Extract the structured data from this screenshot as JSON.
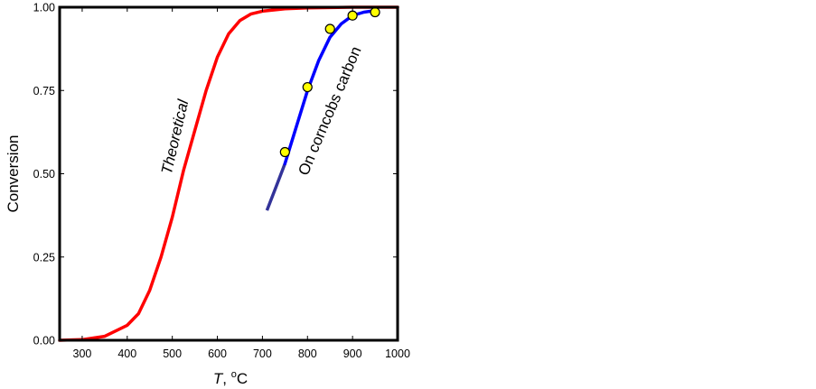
{
  "chart_data": {
    "type": "line",
    "xlabel_italic": "T",
    "xlabel_rest": ", ",
    "xlabel_degree": "o",
    "xlabel_unit": "C",
    "ylabel": "Conversion",
    "xlim": [
      250,
      1000
    ],
    "ylim": [
      0,
      1
    ],
    "x_ticks": [
      300,
      400,
      500,
      600,
      700,
      800,
      900,
      1000
    ],
    "y_ticks": [
      "0.00",
      "0.25",
      "0.50",
      "0.75",
      "1.00"
    ],
    "y_tick_values": [
      0,
      0.25,
      0.5,
      0.75,
      1.0
    ],
    "grid": false,
    "series": [
      {
        "label": "Theoretical",
        "color": "#ff0000",
        "points": [
          [
            250,
            0.0
          ],
          [
            300,
            0.002
          ],
          [
            350,
            0.012
          ],
          [
            400,
            0.045
          ],
          [
            425,
            0.08
          ],
          [
            450,
            0.15
          ],
          [
            475,
            0.25
          ],
          [
            500,
            0.37
          ],
          [
            525,
            0.51
          ],
          [
            550,
            0.63
          ],
          [
            575,
            0.75
          ],
          [
            600,
            0.85
          ],
          [
            625,
            0.92
          ],
          [
            650,
            0.96
          ],
          [
            675,
            0.98
          ],
          [
            700,
            0.988
          ],
          [
            750,
            0.995
          ],
          [
            800,
            0.998
          ],
          [
            900,
            1.0
          ],
          [
            1000,
            1.0
          ]
        ]
      },
      {
        "label": "On corncobs carbon",
        "color": "#0000ff",
        "extrapolated_color": "#333399",
        "extrapolated_points": [
          [
            710,
            0.39
          ],
          [
            730,
            0.46
          ],
          [
            750,
            0.53
          ]
        ],
        "fit_points": [
          [
            750,
            0.53
          ],
          [
            775,
            0.64
          ],
          [
            800,
            0.75
          ],
          [
            825,
            0.84
          ],
          [
            850,
            0.91
          ],
          [
            875,
            0.95
          ],
          [
            900,
            0.975
          ],
          [
            925,
            0.985
          ],
          [
            950,
            0.99
          ]
        ],
        "markers": {
          "color": "#ffff00",
          "points": [
            [
              750,
              0.565
            ],
            [
              800,
              0.76
            ],
            [
              850,
              0.935
            ],
            [
              900,
              0.975
            ],
            [
              950,
              0.985
            ]
          ]
        }
      }
    ]
  }
}
